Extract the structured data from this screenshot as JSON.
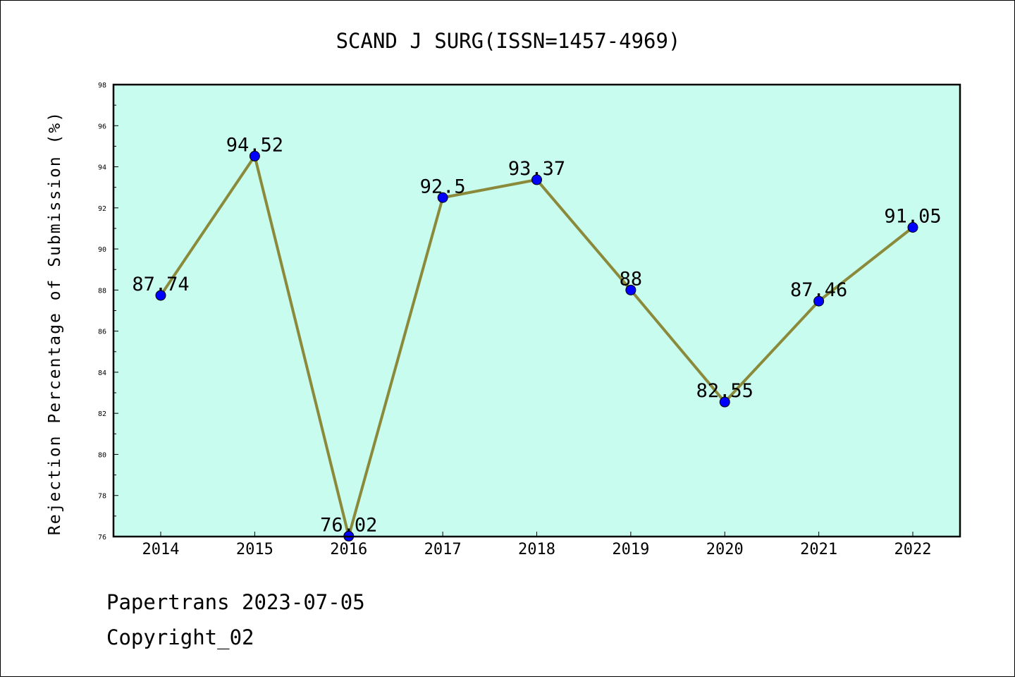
{
  "chart_data": {
    "type": "line",
    "title": "SCAND J SURG(ISSN=1457-4969)",
    "xlabel": "",
    "ylabel": "Rejection Percentage of Submission (%)",
    "categories": [
      "2014",
      "2015",
      "2016",
      "2017",
      "2018",
      "2019",
      "2020",
      "2021",
      "2022"
    ],
    "series": [
      {
        "values": [
          87.74,
          94.52,
          76.02,
          92.5,
          93.37,
          88,
          82.55,
          87.46,
          91.05
        ],
        "data_labels": [
          "87.74",
          "94.52",
          "76.02",
          "92.5",
          "93.37",
          "88",
          "82.55",
          "87.46",
          "91.05"
        ],
        "line_color": "#8b8a3a",
        "marker_color": "#0000ff"
      }
    ],
    "ylim": [
      76,
      98
    ],
    "yticks": [
      76,
      78,
      80,
      82,
      84,
      86,
      88,
      90,
      92,
      94,
      96,
      98
    ],
    "ytick_labels": [
      "76",
      "78",
      "80",
      "82",
      "84",
      "86",
      "88",
      "90",
      "92",
      "94",
      "96",
      "98"
    ],
    "grid": false,
    "plot_background": "#c8fcee"
  },
  "footer": {
    "line1": "Papertrans 2023-07-05",
    "line2": "Copyright_02"
  }
}
